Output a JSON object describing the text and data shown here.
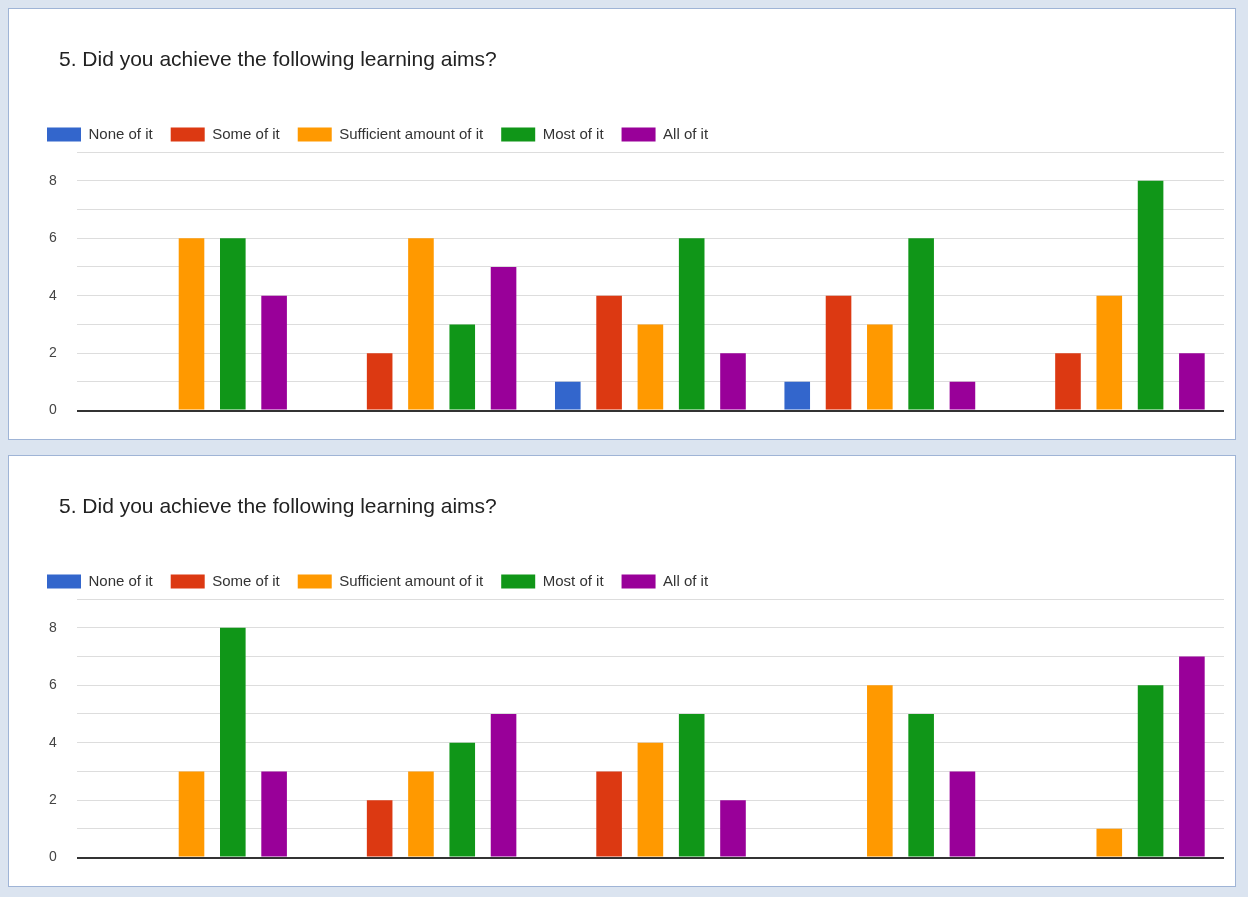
{
  "chart_data": [
    {
      "type": "bar",
      "title": "5. Did you achieve the following learning aims?",
      "categories": [
        null,
        null,
        null,
        null,
        null
      ],
      "series": [
        {
          "name": "None of it",
          "color": "#3366cc",
          "values": [
            0,
            0,
            1,
            1,
            0
          ]
        },
        {
          "name": "Some of it",
          "color": "#dc3912",
          "values": [
            0,
            2,
            4,
            4,
            2
          ]
        },
        {
          "name": "Sufficient amount of it",
          "color": "#ff9900",
          "values": [
            6,
            6,
            3,
            3,
            4
          ]
        },
        {
          "name": "Most of it",
          "color": "#109618",
          "values": [
            6,
            3,
            6,
            6,
            8
          ]
        },
        {
          "name": "All of it",
          "color": "#990099",
          "values": [
            4,
            5,
            2,
            1,
            2
          ]
        }
      ],
      "ylim": [
        0,
        9
      ],
      "yticks": [
        0,
        {
          "value": 1,
          "label": null
        },
        2,
        {
          "value": 3,
          "label": null
        },
        4,
        {
          "value": 5,
          "label": null
        },
        6,
        {
          "value": 7,
          "label": null
        },
        8,
        {
          "value": 9,
          "label": null
        }
      ],
      "grid": "y",
      "legend": "top left",
      "tick_labels": "y"
    },
    {
      "type": "bar",
      "title": "5. Did you achieve the following learning aims?",
      "categories": [
        null,
        null,
        null,
        null,
        null
      ],
      "series": [
        {
          "name": "None of it",
          "color": "#3366cc",
          "values": [
            0,
            0,
            0,
            0,
            0
          ]
        },
        {
          "name": "Some of it",
          "color": "#dc3912",
          "values": [
            0,
            2,
            3,
            0,
            0
          ]
        },
        {
          "name": "Sufficient amount of it",
          "color": "#ff9900",
          "values": [
            3,
            3,
            4,
            6,
            1
          ]
        },
        {
          "name": "Most of it",
          "color": "#109618",
          "values": [
            8,
            4,
            5,
            5,
            6
          ]
        },
        {
          "name": "All of it",
          "color": "#990099",
          "values": [
            3,
            5,
            2,
            3,
            7
          ]
        }
      ],
      "ylim": [
        0,
        9
      ],
      "yticks": [
        0,
        {
          "value": 1,
          "label": null
        },
        2,
        {
          "value": 3,
          "label": null
        },
        4,
        {
          "value": 5,
          "label": null
        },
        6,
        {
          "value": 7,
          "label": null
        },
        8,
        {
          "value": 9,
          "label": null
        }
      ],
      "grid": "y",
      "legend": "top left",
      "tick_labels": "y"
    }
  ]
}
